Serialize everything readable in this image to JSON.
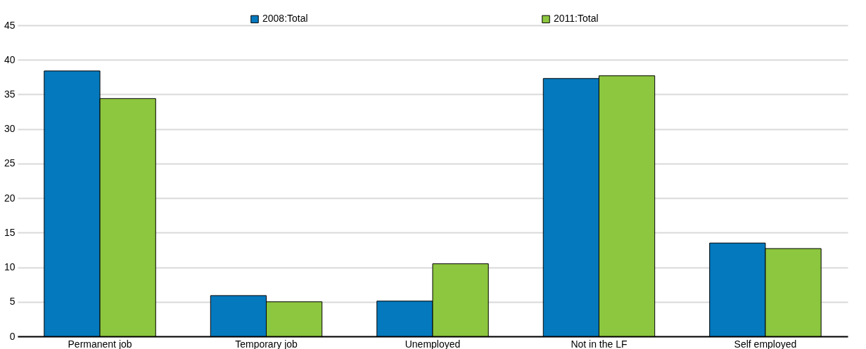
{
  "chart_data": {
    "type": "bar",
    "categories": [
      "Permanent job",
      "Temporary job",
      "Unemployed",
      "Not in the LF",
      "Self employed"
    ],
    "series": [
      {
        "name": "2008:Total",
        "color": "#0479be",
        "values": [
          38.4,
          5.9,
          5.1,
          37.3,
          13.5
        ]
      },
      {
        "name": "2011:Total",
        "color": "#8dc63f",
        "values": [
          34.4,
          5.0,
          10.5,
          37.7,
          12.7
        ]
      }
    ],
    "ylim": [
      0,
      45
    ],
    "yticks": [
      0,
      5,
      10,
      15,
      20,
      25,
      30,
      35,
      40,
      45
    ],
    "grid": "y",
    "legend": "top"
  }
}
